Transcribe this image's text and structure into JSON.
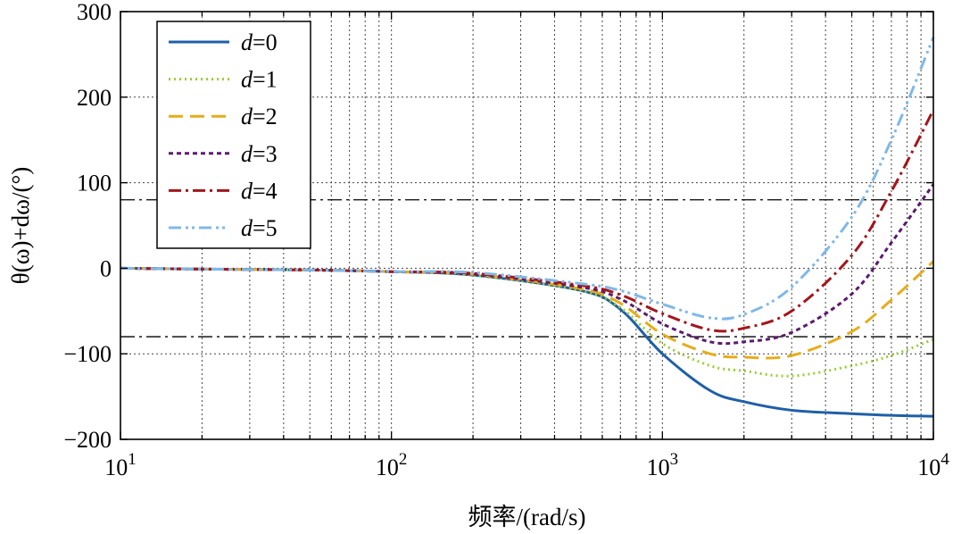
{
  "chart_data": {
    "type": "line",
    "xlabel": "频率/(rad/s)",
    "ylabel": "θ(ω)+dω/(°)",
    "xscale": "log",
    "xlim": [
      10,
      10000
    ],
    "ylim": [
      -200,
      300
    ],
    "yticks": [
      -200,
      -100,
      0,
      100,
      200,
      300
    ],
    "ytick_labels": [
      "−200",
      "−100",
      "0",
      "100",
      "200",
      "300"
    ],
    "xticks": [
      10,
      100,
      1000,
      10000
    ],
    "xtick_base": "10",
    "xtick_exponents": [
      "1",
      "2",
      "3",
      "4"
    ],
    "grid": true,
    "legend_position": "top-left",
    "reference_lines": [
      80,
      -80
    ],
    "colors": {
      "d0": "#1f5fa8",
      "d1": "#9acd32",
      "d2": "#e6ac1a",
      "d3": "#5c1a6e",
      "d4": "#a3161c",
      "d5": "#7fb8e8",
      "reference": "#000000"
    },
    "x": [
      10,
      20,
      50,
      100,
      200,
      500,
      700,
      1000,
      1500,
      2000,
      3000,
      5000,
      7000,
      10000
    ],
    "series": [
      {
        "name": "0",
        "values": [
          0,
          -1,
          -2,
          -4,
          -8,
          -26,
          -48,
          -100,
          -143,
          -156,
          -166,
          -170,
          -172,
          -173
        ]
      },
      {
        "name": "1",
        "values": [
          0,
          -1,
          -2,
          -4,
          -8,
          -26,
          -46,
          -88,
          -114,
          -120,
          -126,
          -114,
          -102,
          -83
        ]
      },
      {
        "name": "2",
        "values": [
          0,
          -1,
          -2,
          -4,
          -7,
          -24,
          -41,
          -77,
          -100,
          -104,
          -102,
          -74,
          -37,
          8
        ]
      },
      {
        "name": "3",
        "values": [
          0,
          -1,
          -2,
          -4,
          -7,
          -22,
          -36,
          -65,
          -86,
          -86,
          -75,
          -30,
          30,
          98
        ]
      },
      {
        "name": "4",
        "values": [
          0,
          -1,
          -2,
          -4,
          -6,
          -20,
          -31,
          -53,
          -72,
          -70,
          -50,
          15,
          90,
          185
        ]
      },
      {
        "name": "5",
        "values": [
          0,
          -1,
          -2,
          -4,
          -5,
          -18,
          -26,
          -42,
          -58,
          -54,
          -22,
          60,
          150,
          270
        ]
      }
    ]
  }
}
